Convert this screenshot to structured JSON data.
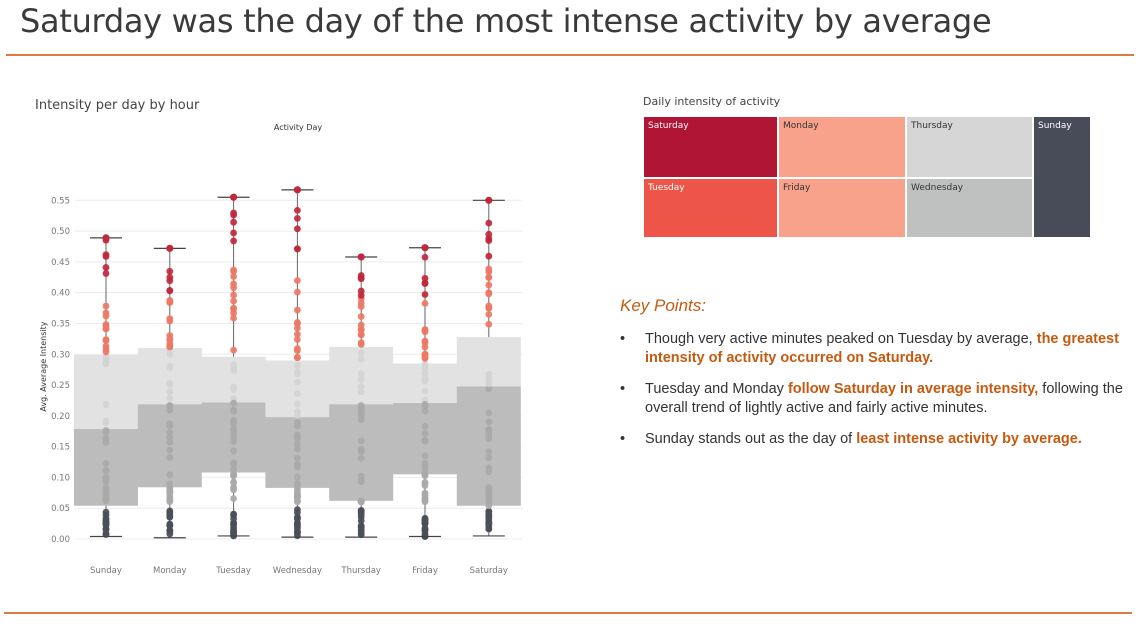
{
  "slide": {
    "title": "Saturday was the day of the most intense activity by average"
  },
  "boxplot": {
    "panel_title": "Intensity per day by hour"
  },
  "treemap": {
    "panel_title": "Daily intensity of activity"
  },
  "key_points": {
    "heading": "Key Points:",
    "bullet": "•",
    "items": [
      {
        "pre": "Though very active minutes peaked on Tuesday by average, ",
        "hl": "the greatest intensity of activity occurred on Saturday.",
        "post": ""
      },
      {
        "pre": "Tuesday and Monday ",
        "hl": "follow Saturday in average intensity,",
        "post": " following the overall trend of lightly active and fairly active minutes."
      },
      {
        "pre": "Sunday stands out as the day of ",
        "hl": "least intense activity by average.",
        "post": ""
      }
    ]
  },
  "colors": {
    "accent": "#e07a3c",
    "highlight": "#c55a11",
    "outlier_high_dark": "#c0283c",
    "outlier_high_light": "#ec7865",
    "point_mid": "#bdbdbd",
    "point_low": "#4a4f5a"
  },
  "chart_data": [
    {
      "type": "box",
      "title": "Activity Day",
      "xlabel": "",
      "ylabel": "Avg. Average Intensity",
      "ylim": [
        0,
        0.57
      ],
      "yticks": [
        "0.00",
        "0.05",
        "0.10",
        "0.15",
        "0.20",
        "0.25",
        "0.30",
        "0.35",
        "0.40",
        "0.45",
        "0.50",
        "0.55"
      ],
      "grid": true,
      "categories": [
        "Sunday",
        "Monday",
        "Tuesday",
        "Wednesday",
        "Thursday",
        "Friday",
        "Saturday"
      ],
      "min": [
        0.004,
        0.002,
        0.005,
        0.003,
        0.003,
        0.004,
        0.005
      ],
      "q1": [
        0.054,
        0.084,
        0.108,
        0.083,
        0.062,
        0.105,
        0.054
      ],
      "median": [
        0.179,
        0.219,
        0.222,
        0.198,
        0.219,
        0.221,
        0.248
      ],
      "q3": [
        0.299,
        0.31,
        0.296,
        0.29,
        0.312,
        0.285,
        0.328
      ],
      "max": [
        0.489,
        0.472,
        0.555,
        0.567,
        0.458,
        0.473,
        0.55
      ]
    },
    {
      "type": "treemap",
      "title": "Daily intensity of activity",
      "categories": [
        "Saturday",
        "Monday",
        "Thursday",
        "Sunday",
        "Tuesday",
        "Friday",
        "Wednesday"
      ],
      "colors": [
        "#b01535",
        "#f8a28c",
        "#d5d5d5",
        "#474c58",
        "#ec5547",
        "#f8a28c",
        "#bfc1c1"
      ]
    }
  ]
}
